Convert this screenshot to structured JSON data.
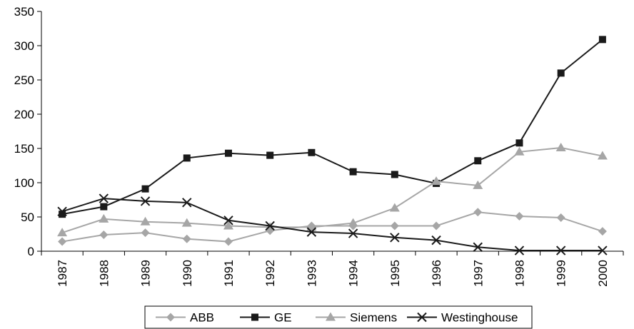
{
  "chart_data": {
    "type": "line",
    "title": "",
    "xlabel": "",
    "ylabel": "",
    "categories": [
      "1987",
      "1988",
      "1989",
      "1990",
      "1991",
      "1992",
      "1993",
      "1994",
      "1995",
      "1996",
      "1997",
      "1998",
      "1999",
      "2000"
    ],
    "ylim": [
      0,
      350
    ],
    "yticks": [
      0,
      50,
      100,
      150,
      200,
      250,
      300,
      350
    ],
    "grid": false,
    "legend_position": "bottom",
    "series": [
      {
        "name": "ABB",
        "marker": "diamond",
        "color": "#a6a6a6",
        "values": [
          14,
          24,
          27,
          18,
          14,
          30,
          37,
          37,
          37,
          37,
          57,
          51,
          49,
          29
        ]
      },
      {
        "name": "GE",
        "marker": "square",
        "color": "#1a1a1a",
        "values": [
          54,
          65,
          91,
          136,
          143,
          140,
          144,
          116,
          112,
          99,
          132,
          158,
          260,
          309
        ]
      },
      {
        "name": "Siemens",
        "marker": "triangle",
        "color": "#a6a6a6",
        "values": [
          27,
          47,
          43,
          41,
          37,
          35,
          35,
          41,
          63,
          102,
          96,
          145,
          151,
          139
        ]
      },
      {
        "name": "Westinghouse",
        "marker": "x",
        "color": "#1a1a1a",
        "values": [
          58,
          77,
          73,
          71,
          45,
          37,
          28,
          26,
          20,
          16,
          6,
          1,
          1,
          1
        ]
      }
    ]
  }
}
